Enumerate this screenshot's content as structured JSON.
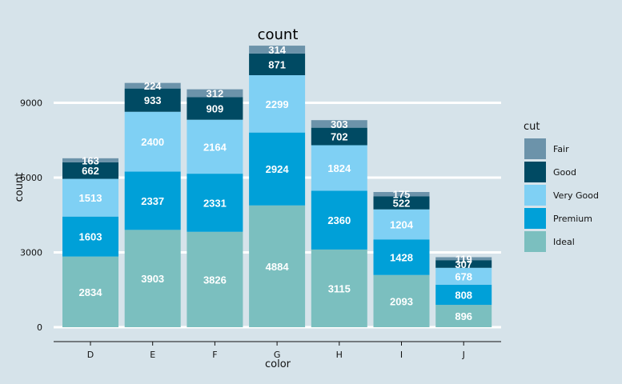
{
  "chart_data": {
    "type": "bar",
    "stacked": true,
    "title": "count",
    "xlabel": "color",
    "ylabel": "count",
    "categories": [
      "D",
      "E",
      "F",
      "G",
      "H",
      "I",
      "J"
    ],
    "y_ticks": [
      0,
      3000,
      6000,
      9000
    ],
    "ylim": [
      0,
      11292
    ],
    "legend_title": "cut",
    "legend_position": "right",
    "series": [
      {
        "name": "Ideal",
        "color": "#7bbfbf",
        "values": [
          2834,
          3903,
          3826,
          4884,
          3115,
          2093,
          896
        ]
      },
      {
        "name": "Premium",
        "color": "#00a0d8",
        "values": [
          1603,
          2337,
          2331,
          2924,
          2360,
          1428,
          808
        ]
      },
      {
        "name": "Very Good",
        "color": "#7fd0f4",
        "values": [
          1513,
          2400,
          2164,
          2299,
          1824,
          1204,
          678
        ]
      },
      {
        "name": "Good",
        "color": "#004a63",
        "values": [
          662,
          933,
          909,
          871,
          702,
          522,
          307
        ]
      },
      {
        "name": "Fair",
        "color": "#6c93aa",
        "values": [
          163,
          224,
          312,
          314,
          303,
          175,
          119
        ]
      }
    ],
    "legend_order": [
      "Fair",
      "Good",
      "Very Good",
      "Premium",
      "Ideal"
    ]
  }
}
